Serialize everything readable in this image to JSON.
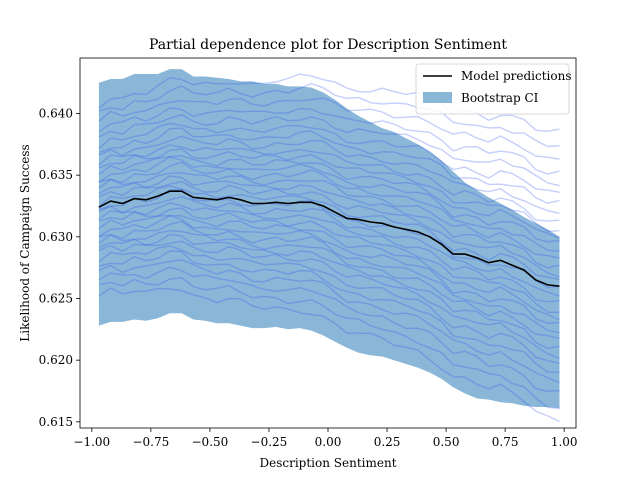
{
  "chart_data": {
    "type": "line",
    "title": "Partial dependence plot for Description Sentiment",
    "xlabel": "Description Sentiment",
    "ylabel": "Likelihood of Campaign Success",
    "xlim": [
      -1.05,
      1.05
    ],
    "ylim": [
      0.6145,
      0.6445
    ],
    "xticks": [
      -1.0,
      -0.75,
      -0.5,
      -0.25,
      0.0,
      0.25,
      0.5,
      0.75,
      1.0
    ],
    "xtick_labels": [
      "−1.00",
      "−0.75",
      "−0.50",
      "−0.25",
      "0.00",
      "0.25",
      "0.50",
      "0.75",
      "1.00"
    ],
    "yticks": [
      0.615,
      0.62,
      0.625,
      0.63,
      0.635,
      0.64
    ],
    "ytick_labels": [
      "0.615",
      "0.620",
      "0.625",
      "0.630",
      "0.635",
      "0.640"
    ],
    "grid": false,
    "legend_position": "top-right",
    "legend": [
      "Model predictions",
      "Bootstrap CI"
    ],
    "colors": {
      "model": "#000000",
      "ci_band": "#8ab6d8",
      "bootstrap_lines": "#3050f0"
    },
    "x": [
      -0.97,
      -0.92,
      -0.87,
      -0.82,
      -0.77,
      -0.72,
      -0.67,
      -0.62,
      -0.57,
      -0.52,
      -0.47,
      -0.42,
      -0.37,
      -0.32,
      -0.27,
      -0.22,
      -0.17,
      -0.12,
      -0.07,
      -0.02,
      0.03,
      0.08,
      0.13,
      0.18,
      0.23,
      0.28,
      0.33,
      0.38,
      0.43,
      0.48,
      0.53,
      0.58,
      0.63,
      0.68,
      0.73,
      0.78,
      0.83,
      0.88,
      0.93,
      0.98
    ],
    "series": [
      {
        "name": "Model predictions",
        "values": [
          0.6324,
          0.6329,
          0.6327,
          0.6331,
          0.633,
          0.6333,
          0.6337,
          0.6337,
          0.6332,
          0.6331,
          0.633,
          0.6332,
          0.633,
          0.6327,
          0.6327,
          0.6328,
          0.6327,
          0.6328,
          0.6328,
          0.6325,
          0.632,
          0.6315,
          0.6314,
          0.6312,
          0.6311,
          0.6308,
          0.6306,
          0.6304,
          0.63,
          0.6294,
          0.6286,
          0.6286,
          0.6283,
          0.6279,
          0.6281,
          0.6277,
          0.6273,
          0.6265,
          0.6261,
          0.626
        ]
      }
    ],
    "ci_upper": [
      0.6425,
      0.6428,
      0.6428,
      0.6432,
      0.6432,
      0.6432,
      0.6436,
      0.6436,
      0.643,
      0.643,
      0.6429,
      0.6428,
      0.6426,
      0.6426,
      0.6424,
      0.6424,
      0.6422,
      0.6422,
      0.6421,
      0.6417,
      0.6411,
      0.6404,
      0.6398,
      0.6393,
      0.6388,
      0.6385,
      0.638,
      0.6375,
      0.6369,
      0.6362,
      0.6353,
      0.6344,
      0.6338,
      0.6332,
      0.6327,
      0.6322,
      0.6316,
      0.6311,
      0.6306,
      0.63
    ],
    "ci_lower": [
      0.6228,
      0.6231,
      0.6231,
      0.6233,
      0.6232,
      0.6234,
      0.6238,
      0.6238,
      0.6233,
      0.6232,
      0.623,
      0.623,
      0.6228,
      0.6226,
      0.6226,
      0.6227,
      0.6225,
      0.6226,
      0.6224,
      0.622,
      0.6215,
      0.621,
      0.6206,
      0.6204,
      0.6203,
      0.62,
      0.6197,
      0.6194,
      0.619,
      0.6185,
      0.6178,
      0.6173,
      0.6169,
      0.6168,
      0.6166,
      0.6165,
      0.6163,
      0.6162,
      0.6162,
      0.6161
    ],
    "bootstrap_offsets": [
      -0.0072,
      -0.0065,
      -0.0058,
      -0.0052,
      -0.0047,
      -0.0042,
      -0.0037,
      -0.0033,
      -0.0029,
      -0.0025,
      -0.0021,
      -0.0017,
      -0.0013,
      -0.0009,
      -0.0005,
      -0.0001,
      0.0003,
      0.0007,
      0.0011,
      0.0015,
      0.0019,
      0.0023,
      0.0027,
      0.0031,
      0.0035,
      0.004,
      0.0045,
      0.005,
      0.0056,
      0.0062,
      0.0069,
      0.0076,
      0.0083
    ]
  }
}
